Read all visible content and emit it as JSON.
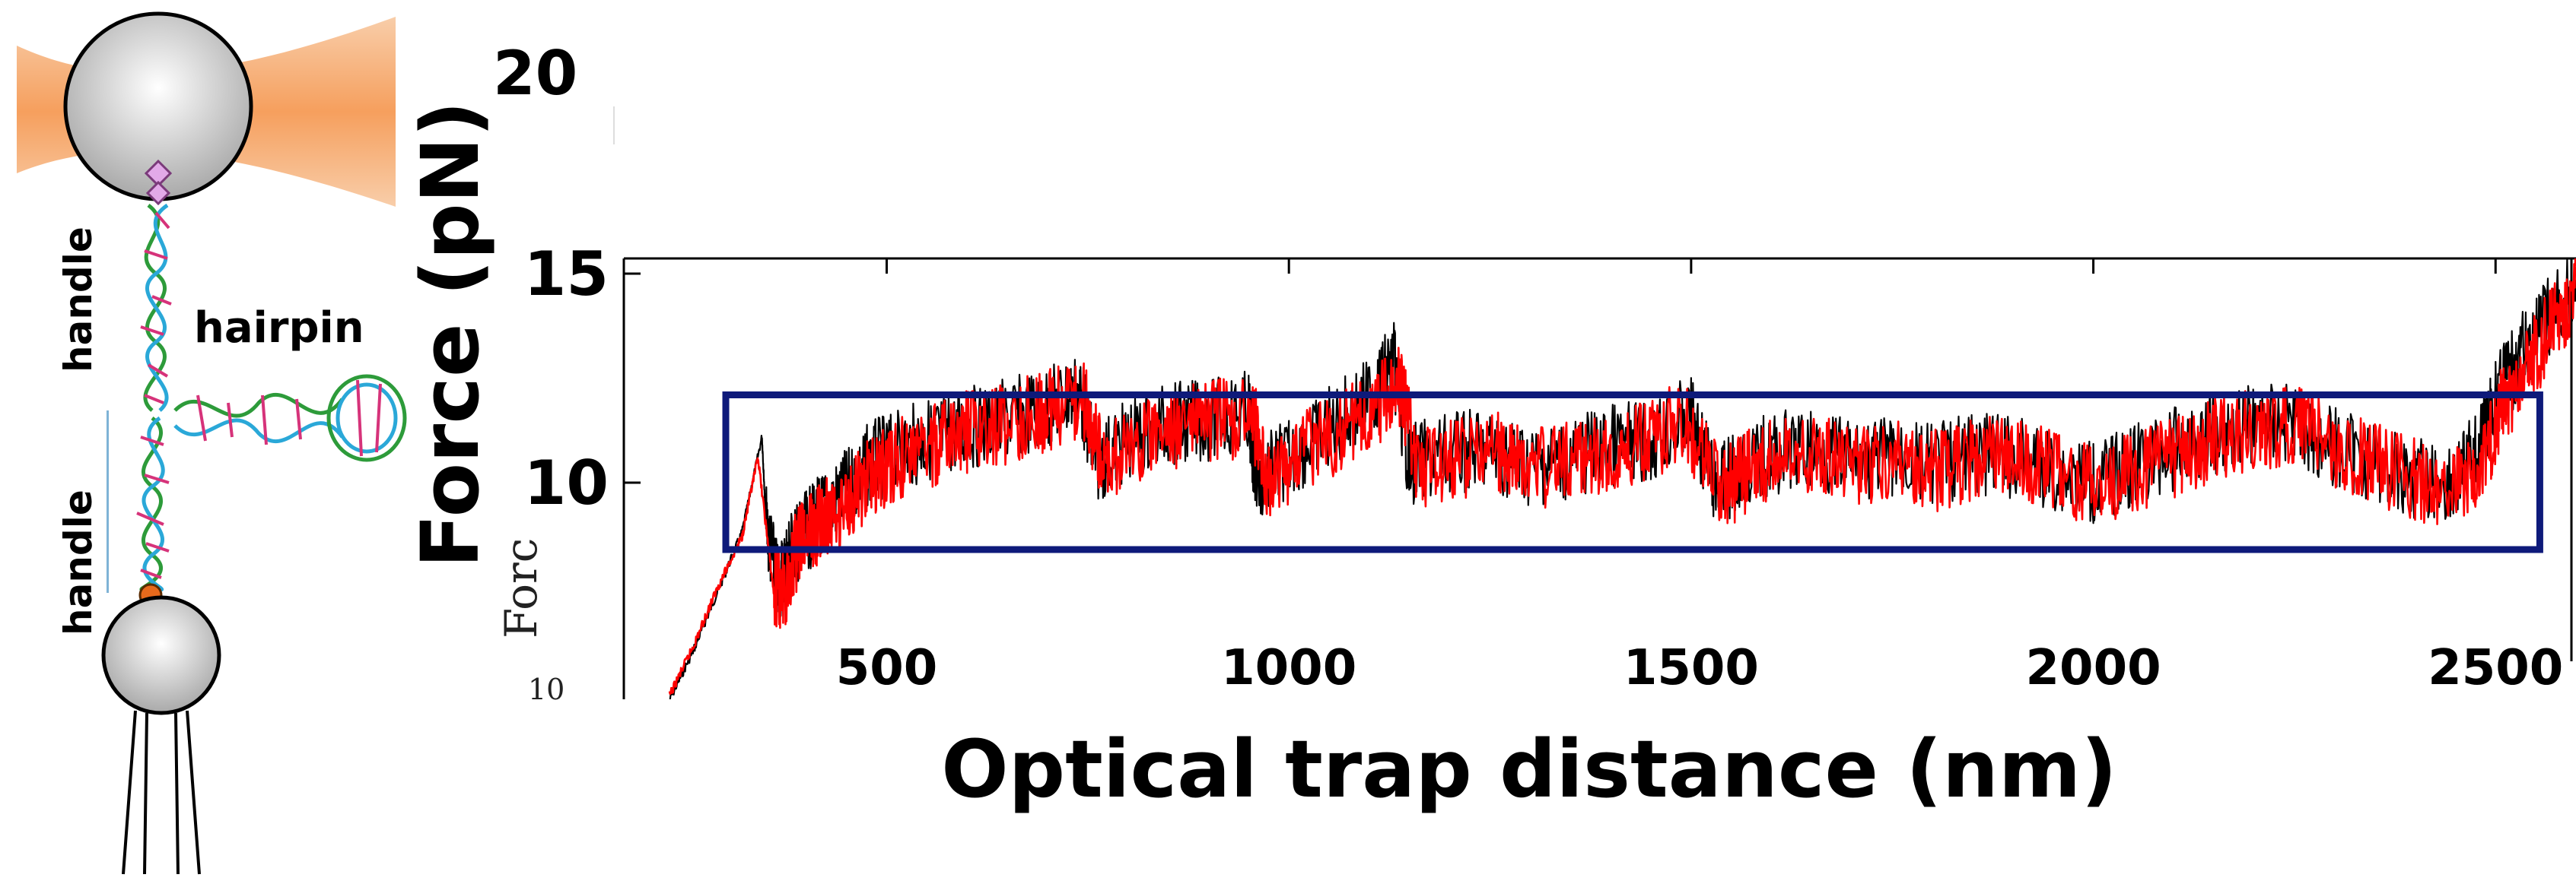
{
  "schematic": {
    "labels": {
      "handle_top": "handle",
      "hairpin": "hairpin",
      "handle_bottom": "handle"
    },
    "colors": {
      "laser": "#f7a768",
      "bead": "#c8c8c8",
      "dig_marker": "#e2a9e8",
      "biotin_marker": "#e86a1c"
    }
  },
  "chart_data": {
    "type": "line",
    "xlabel": "Optical trap distance (nm)",
    "ylabel": "Force (pN)",
    "xlim": [
      230,
      2600
    ],
    "ylim": [
      5,
      15
    ],
    "x_ticks": [
      500,
      1000,
      1500,
      2000,
      2500
    ],
    "y_ticks": [
      10,
      15
    ],
    "y_tick_above": "20",
    "background_fragment_labels": {
      "y_tick": "10",
      "axis": "Forc"
    },
    "grid": false,
    "series": [
      {
        "color": "#000000",
        "x": [
          230,
          260,
          290,
          320,
          345,
          350,
          365,
          380,
          400,
          420,
          450,
          480,
          520,
          560,
          600,
          650,
          700,
          740,
          760,
          800,
          850,
          900,
          950,
          960,
          1000,
          1050,
          1100,
          1130,
          1150,
          1200,
          1250,
          1300,
          1350,
          1400,
          1450,
          1500,
          1530,
          1560,
          1600,
          1650,
          1700,
          1750,
          1800,
          1850,
          1900,
          1950,
          2000,
          2050,
          2100,
          2150,
          2200,
          2250,
          2300,
          2350,
          2400,
          2450,
          2480,
          2500,
          2530,
          2560,
          2600
        ],
        "y": [
          4.8,
          6.0,
          7.4,
          8.8,
          11.1,
          9.0,
          7.5,
          8.4,
          8.8,
          9.3,
          9.8,
          10.5,
          10.8,
          11.1,
          11.3,
          11.5,
          11.8,
          12.2,
          10.5,
          11.0,
          11.4,
          11.5,
          11.7,
          10.0,
          10.6,
          11.3,
          12.0,
          12.9,
          10.4,
          10.7,
          10.8,
          10.4,
          10.6,
          10.9,
          11.0,
          11.6,
          9.9,
          10.3,
          10.7,
          10.8,
          10.5,
          10.6,
          10.4,
          10.7,
          10.6,
          10.3,
          10.0,
          10.4,
          10.8,
          11.2,
          11.4,
          11.5,
          10.8,
          10.5,
          10.1,
          10.0,
          10.9,
          12.0,
          13.0,
          13.8,
          14.6
        ]
      },
      {
        "color": "#ff0000",
        "x": [
          230,
          260,
          290,
          320,
          340,
          360,
          375,
          390,
          410,
          430,
          460,
          490,
          520,
          560,
          600,
          650,
          700,
          745,
          770,
          810,
          860,
          910,
          955,
          975,
          1010,
          1060,
          1110,
          1140,
          1160,
          1210,
          1260,
          1300,
          1350,
          1400,
          1450,
          1490,
          1540,
          1570,
          1610,
          1660,
          1710,
          1760,
          1810,
          1860,
          1910,
          1960,
          2010,
          2060,
          2110,
          2160,
          2210,
          2260,
          2310,
          2360,
          2410,
          2460,
          2490,
          2510,
          2540,
          2570,
          2600
        ],
        "y": [
          4.9,
          6.1,
          7.5,
          8.7,
          10.6,
          7.3,
          7.6,
          8.5,
          8.9,
          9.2,
          9.7,
          10.3,
          10.6,
          10.9,
          11.2,
          11.4,
          11.7,
          12.0,
          10.4,
          10.9,
          11.3,
          11.5,
          11.6,
          10.0,
          10.7,
          11.2,
          11.9,
          12.3,
          10.3,
          10.6,
          10.7,
          10.3,
          10.5,
          10.8,
          11.0,
          11.5,
          9.8,
          10.3,
          10.6,
          10.7,
          10.4,
          10.5,
          10.3,
          10.6,
          10.5,
          10.2,
          9.9,
          10.3,
          10.7,
          11.1,
          11.3,
          11.4,
          10.7,
          10.4,
          10.0,
          10.0,
          10.8,
          11.9,
          12.8,
          13.7,
          14.5
        ]
      }
    ],
    "annotations": [
      {
        "type": "rectangle",
        "color": "#0e1a7a",
        "x0": 300,
        "x1": 2555,
        "y0": 8.4,
        "y1": 12.1
      }
    ]
  }
}
